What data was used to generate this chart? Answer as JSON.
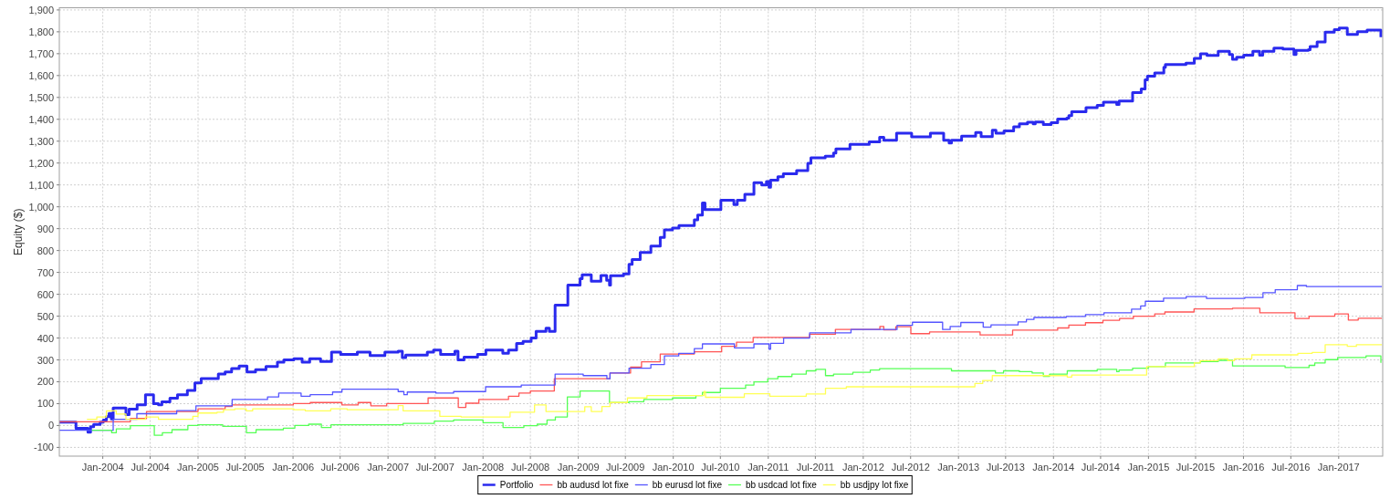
{
  "chart_data": {
    "type": "step",
    "ylabel": "Equity ($)",
    "grid": true,
    "legend": "bottom",
    "xlim": [
      "2003-07-18",
      "2017-06-19"
    ],
    "xticks": [
      {
        "value": "2004-01",
        "label": "Jan-2004"
      },
      {
        "value": "2004-07",
        "label": "Jul-2004"
      },
      {
        "value": "2005-01",
        "label": "Jan-2005"
      },
      {
        "value": "2005-07",
        "label": "Jul-2005"
      },
      {
        "value": "2006-01",
        "label": "Jan-2006"
      },
      {
        "value": "2006-07",
        "label": "Jul-2006"
      },
      {
        "value": "2007-01",
        "label": "Jan-2007"
      },
      {
        "value": "2007-07",
        "label": "Jul-2007"
      },
      {
        "value": "2008-01",
        "label": "Jan-2008"
      },
      {
        "value": "2008-07",
        "label": "Jul-2008"
      },
      {
        "value": "2009-01",
        "label": "Jan-2009"
      },
      {
        "value": "2009-07",
        "label": "Jul-2009"
      },
      {
        "value": "2010-01",
        "label": "Jan-2010"
      },
      {
        "value": "2010-07",
        "label": "Jul-2010"
      },
      {
        "value": "2011-01",
        "label": "Jan-2011"
      },
      {
        "value": "2011-07",
        "label": "Jul-2011"
      },
      {
        "value": "2012-01",
        "label": "Jan-2012"
      },
      {
        "value": "2012-07",
        "label": "Jul-2012"
      },
      {
        "value": "2013-01",
        "label": "Jan-2013"
      },
      {
        "value": "2013-07",
        "label": "Jul-2013"
      },
      {
        "value": "2014-01",
        "label": "Jan-2014"
      },
      {
        "value": "2014-07",
        "label": "Jul-2014"
      },
      {
        "value": "2015-01",
        "label": "Jan-2015"
      },
      {
        "value": "2015-07",
        "label": "Jul-2015"
      },
      {
        "value": "2016-01",
        "label": "Jan-2016"
      },
      {
        "value": "2016-07",
        "label": "Jul-2016"
      },
      {
        "value": "2017-01",
        "label": "Jan-2017"
      }
    ],
    "ylim": [
      -140,
      1910
    ],
    "yticks": [
      -100,
      0,
      100,
      200,
      300,
      400,
      500,
      600,
      700,
      800,
      900,
      {
        "value": 1000,
        "label": "1,000"
      },
      {
        "value": 1100,
        "label": "1,100"
      },
      {
        "value": 1200,
        "label": "1,200"
      },
      {
        "value": 1300,
        "label": "1,300"
      },
      {
        "value": 1400,
        "label": "1,400"
      },
      {
        "value": 1500,
        "label": "1,500"
      },
      {
        "value": 1600,
        "label": "1,600"
      },
      {
        "value": 1700,
        "label": "1,700"
      },
      {
        "value": 1800,
        "label": "1,800"
      },
      {
        "value": 1900,
        "label": "1,900"
      }
    ],
    "series": [
      {
        "name": "Portfolio",
        "color": "#2a2aee",
        "x": [
          "2003-07-18",
          "2003-09-20",
          "2003-11-05",
          "2003-11-15",
          "2003-11-27",
          "2003-12-22",
          "2004-01-03",
          "2004-01-15",
          "2004-01-25",
          "2004-02-03",
          "2004-02-10",
          "2004-03-30",
          "2004-04-11",
          "2004-05-12",
          "2004-06-13",
          "2004-07-14",
          "2004-08-02",
          "2004-08-15",
          "2004-09-15",
          "2004-10-14",
          "2004-11-21",
          "2004-12-20",
          "2005-01-13",
          "2005-03-20",
          "2005-04-15",
          "2005-05-10",
          "2005-06-08",
          "2005-07-08",
          "2005-08-10",
          "2005-09-19",
          "2005-11-02",
          "2005-11-27",
          "2006-01-04",
          "2006-02-05",
          "2006-03-06",
          "2006-04-17",
          "2006-05-29",
          "2006-07-03",
          "2006-09-05",
          "2006-10-24",
          "2006-12-20",
          "2007-02-09",
          "2007-02-25",
          "2007-03-10",
          "2007-06-01",
          "2007-06-25",
          "2007-07-22",
          "2007-09-15",
          "2007-09-27",
          "2007-10-20",
          "2007-12-11",
          "2008-01-12",
          "2008-03-17",
          "2008-04-08",
          "2008-05-09",
          "2008-06-03",
          "2008-07-04",
          "2008-07-23",
          "2008-08-30",
          "2008-09-12",
          "2008-10-04",
          "2008-11-22",
          "2009-01-08",
          "2009-01-16",
          "2009-02-20",
          "2009-03-29",
          "2009-04-20",
          "2009-05-01",
          "2009-05-05",
          "2009-06-24",
          "2009-07-15",
          "2009-07-27",
          "2009-08-27",
          "2009-10-07",
          "2009-11-12",
          "2009-11-28",
          "2009-12-29",
          "2010-01-23",
          "2010-03-23",
          "2010-04-05",
          "2010-04-23",
          "2010-05-03",
          "2010-07-03",
          "2010-08-22",
          "2010-09-04",
          "2010-10-03",
          "2010-11-07",
          "2010-12-07",
          "2010-12-25",
          "2011-01-04",
          "2011-01-10",
          "2011-02-07",
          "2011-02-28",
          "2011-04-20",
          "2011-06-02",
          "2011-06-14",
          "2011-08-08",
          "2011-09-09",
          "2011-09-18",
          "2011-11-11",
          "2012-01-24",
          "2012-03-04",
          "2012-03-20",
          "2012-05-08",
          "2012-07-05",
          "2012-09-15",
          "2012-11-05",
          "2012-11-26",
          "2012-12-05",
          "2013-01-13",
          "2013-03-08",
          "2013-03-29",
          "2013-05-11",
          "2013-05-25",
          "2013-06-25",
          "2013-08-01",
          "2013-08-23",
          "2013-09-23",
          "2013-10-15",
          "2013-10-23",
          "2013-11-23",
          "2013-12-23",
          "2014-01-17",
          "2014-02-21",
          "2014-03-01",
          "2014-03-12",
          "2014-05-06",
          "2014-06-18",
          "2014-07-12",
          "2014-09-01",
          "2014-09-10",
          "2014-11-01",
          "2014-12-04",
          "2014-12-19",
          "2014-12-28",
          "2015-01-25",
          "2015-03-01",
          "2015-03-07",
          "2015-05-25",
          "2015-06-26",
          "2015-07-20",
          "2015-08-14",
          "2015-09-26",
          "2015-11-08",
          "2015-11-20",
          "2015-12-06",
          "2016-01-02",
          "2016-02-06",
          "2016-03-03",
          "2016-03-15",
          "2016-04-27",
          "2016-06-01",
          "2016-07-13",
          "2016-07-21",
          "2016-09-06",
          "2016-09-13",
          "2016-10-10",
          "2016-11-10",
          "2016-12-15",
          "2017-01-03",
          "2017-02-03",
          "2017-03-14",
          "2017-04-20",
          "2017-06-12"
        ],
        "values": [
          15,
          -13,
          -30,
          -5,
          5,
          15,
          25,
          40,
          55,
          30,
          80,
          50,
          75,
          95,
          140,
          100,
          95,
          108,
          125,
          140,
          160,
          195,
          215,
          235,
          245,
          260,
          272,
          245,
          255,
          270,
          290,
          300,
          305,
          290,
          305,
          293,
          335,
          325,
          335,
          320,
          335,
          340,
          310,
          322,
          335,
          345,
          325,
          340,
          300,
          313,
          325,
          345,
          330,
          345,
          375,
          385,
          400,
          430,
          445,
          430,
          550,
          642,
          671,
          689,
          660,
          686,
          664,
          642,
          685,
          693,
          737,
          759,
          791,
          820,
          860,
          894,
          903,
          914,
          940,
          962,
          1017,
          987,
          1030,
          1010,
          1030,
          1057,
          1110,
          1100,
          1115,
          1089,
          1122,
          1137,
          1151,
          1166,
          1199,
          1224,
          1231,
          1246,
          1265,
          1285,
          1297,
          1318,
          1304,
          1336,
          1320,
          1336,
          1304,
          1292,
          1304,
          1323,
          1340,
          1321,
          1350,
          1336,
          1347,
          1366,
          1379,
          1387,
          1379,
          1388,
          1376,
          1384,
          1401,
          1405,
          1417,
          1435,
          1453,
          1464,
          1478,
          1468,
          1484,
          1522,
          1539,
          1580,
          1597,
          1612,
          1638,
          1650,
          1657,
          1679,
          1699,
          1692,
          1711,
          1696,
          1674,
          1684,
          1693,
          1711,
          1693,
          1711,
          1725,
          1721,
          1696,
          1715,
          1718,
          1733,
          1754,
          1798,
          1810,
          1817,
          1788,
          1801,
          1808,
          1776
        ]
      },
      {
        "name": "bb audusd lot fixe",
        "color": "#ff5555",
        "x": [
          "2003-07-18",
          "2004-04-16",
          "2004-06-17",
          "2005-01-01",
          "2005-04-15",
          "2005-05-12",
          "2006-01-02",
          "2006-03-08",
          "2006-07-08",
          "2006-09-08",
          "2006-10-27",
          "2006-12-27",
          "2007-06-04",
          "2007-09-28",
          "2007-10-27",
          "2007-12-16",
          "2008-04-08",
          "2008-05-18",
          "2008-07-01",
          "2008-10-01",
          "2009-05-03",
          "2009-07-21",
          "2009-09-01",
          "2009-11-12",
          "2010-03-23",
          "2010-07-06",
          "2010-09-01",
          "2010-11-04",
          "2011-06-09",
          "2011-09-16",
          "2012-03-05",
          "2012-03-20",
          "2012-05-05",
          "2012-07-02",
          "2012-09-12",
          "2013-03-25",
          "2013-07-28",
          "2014-01-17",
          "2014-03-01",
          "2014-05-04",
          "2014-07-10",
          "2014-09-12",
          "2014-11-04",
          "2015-01-25",
          "2015-03-05",
          "2015-06-25",
          "2015-11-20",
          "2016-03-04",
          "2016-07-17",
          "2016-09-09",
          "2016-12-17",
          "2017-02-07",
          "2017-03-17",
          "2017-06-16"
        ],
        "values": [
          17,
          32,
          64,
          76,
          87,
          94,
          100,
          105,
          94,
          105,
          90,
          100,
          126,
          83,
          102,
          119,
          134,
          148,
          158,
          214,
          240,
          267,
          291,
          327,
          337,
          362,
          381,
          403,
          417,
          439,
          453,
          437,
          452,
          420,
          428,
          414,
          436,
          446,
          459,
          470,
          481,
          489,
          500,
          510,
          519,
          533,
          536,
          515,
          489,
          500,
          510,
          482,
          490,
          490
        ]
      },
      {
        "name": "bb eurusd lot fixe",
        "color": "#5555ff",
        "x": [
          "2003-07-18",
          "2004-02-10",
          "2004-05-11",
          "2004-10-11",
          "2004-12-24",
          "2005-05-12",
          "2005-09-25",
          "2005-11-07",
          "2006-02-01",
          "2006-03-08",
          "2006-06-02",
          "2006-07-08",
          "2007-02-09",
          "2007-03-03",
          "2007-03-16",
          "2007-07-04",
          "2007-09-10",
          "2008-01-11",
          "2008-05-27",
          "2008-10-04",
          "2009-01-20",
          "2009-04-21",
          "2009-05-03",
          "2009-07-15",
          "2009-10-07",
          "2009-11-28",
          "2010-01-22",
          "2010-03-23",
          "2010-04-23",
          "2010-08-24",
          "2010-11-07",
          "2011-01-04",
          "2011-01-10",
          "2011-03-01",
          "2011-06-09",
          "2011-11-15",
          "2012-05-10",
          "2012-07-08",
          "2012-11-01",
          "2012-11-30",
          "2013-01-10",
          "2013-04-06",
          "2013-05-06",
          "2013-08-18",
          "2013-09-19",
          "2013-10-18",
          "2014-02-19",
          "2014-05-04",
          "2014-07-14",
          "2014-10-28",
          "2014-12-02",
          "2014-12-20",
          "2015-02-28",
          "2015-05-26",
          "2015-08-12",
          "2016-01-06",
          "2016-03-16",
          "2016-05-02",
          "2016-07-26",
          "2016-08-30",
          "2017-06-16"
        ],
        "values": [
          -22,
          28,
          54,
          68,
          90,
          119,
          131,
          148,
          134,
          141,
          153,
          166,
          155,
          141,
          153,
          148,
          155,
          177,
          185,
          235,
          228,
          214,
          240,
          262,
          279,
          318,
          330,
          352,
          373,
          355,
          373,
          349,
          376,
          400,
          424,
          439,
          458,
          472,
          439,
          453,
          471,
          450,
          460,
          474,
          485,
          494,
          499,
          507,
          515,
          532,
          547,
          568,
          582,
          589,
          581,
          585,
          607,
          621,
          640,
          635,
          635
        ]
      },
      {
        "name": "bb usdcad lot fixe",
        "color": "#55ff55",
        "x": [
          "2003-11-20",
          "2004-02-04",
          "2004-02-22",
          "2004-04-16",
          "2004-07-17",
          "2004-08-17",
          "2004-09-23",
          "2004-11-23",
          "2004-12-31",
          "2005-04-06",
          "2005-07-06",
          "2005-08-12",
          "2005-11-25",
          "2006-01-08",
          "2006-03-02",
          "2006-04-20",
          "2006-05-27",
          "2007-02-28",
          "2007-06-28",
          "2007-09-10",
          "2008-01-01",
          "2008-03-18",
          "2008-06-06",
          "2008-07-27",
          "2008-09-03",
          "2008-10-05",
          "2008-11-20",
          "2009-01-08",
          "2009-05-01",
          "2009-07-15",
          "2009-09-10",
          "2009-12-29",
          "2010-03-29",
          "2010-04-23",
          "2010-07-01",
          "2010-10-06",
          "2010-11-07",
          "2010-12-30",
          "2011-02-07",
          "2011-04-02",
          "2011-05-27",
          "2011-07-03",
          "2011-08-09",
          "2011-09-09",
          "2011-11-22",
          "2012-01-28",
          "2012-03-04",
          "2012-12-05",
          "2013-05-23",
          "2013-06-23",
          "2013-08-23",
          "2013-10-11",
          "2013-11-23",
          "2013-12-17",
          "2014-02-23",
          "2014-06-18",
          "2014-09-01",
          "2014-09-10",
          "2014-11-01",
          "2015-01-01",
          "2015-03-07",
          "2015-07-19",
          "2015-09-26",
          "2015-11-20",
          "2016-06-09",
          "2016-09-09",
          "2016-10-01",
          "2016-11-10",
          "2016-12-28",
          "2017-04-16",
          "2017-06-12"
        ],
        "values": [
          -22,
          -33,
          -15,
          -1,
          -45,
          -33,
          -19,
          0,
          3,
          -4,
          -33,
          -19,
          -12,
          0,
          6,
          -9,
          3,
          10,
          20,
          25,
          13,
          -9,
          -1,
          6,
          25,
          39,
          131,
          158,
          105,
          109,
          119,
          126,
          137,
          151,
          170,
          185,
          199,
          214,
          224,
          235,
          250,
          257,
          228,
          235,
          243,
          254,
          260,
          250,
          240,
          250,
          246,
          240,
          225,
          235,
          250,
          257,
          246,
          254,
          262,
          269,
          286,
          292,
          298,
          272,
          265,
          275,
          286,
          301,
          311,
          318,
          286
        ]
      },
      {
        "name": "bb usdjpy lot fixe",
        "color": "#ffff55",
        "x": [
          "2003-11-01",
          "2003-12-09",
          "2004-01-15",
          "2004-02-22",
          "2004-03-30",
          "2004-06-13",
          "2004-08-02",
          "2004-12-12",
          "2005-01-01",
          "2005-03-15",
          "2005-04-09",
          "2005-05-22",
          "2005-07-05",
          "2005-07-30",
          "2006-01-04",
          "2006-02-17",
          "2006-05-26",
          "2006-07-28",
          "2007-02-09",
          "2007-02-28",
          "2007-07-19",
          "2007-10-09",
          "2008-04-14",
          "2008-07-17",
          "2008-08-30",
          "2009-01-26",
          "2009-02-20",
          "2009-04-02",
          "2009-05-03",
          "2009-07-09",
          "2009-09-22",
          "2010-04-29",
          "2010-05-05",
          "2010-10-01",
          "2011-01-07",
          "2011-05-27",
          "2011-08-09",
          "2011-10-28",
          "2013-03-05",
          "2013-04-04",
          "2013-05-11",
          "2014-02-23",
          "2014-03-12",
          "2014-12-25",
          "2015-06-26",
          "2015-07-19",
          "2015-09-26",
          "2015-11-02",
          "2015-11-27",
          "2016-02-02",
          "2016-07-28",
          "2016-09-21",
          "2016-11-10",
          "2017-02-03",
          "2017-03-10",
          "2017-06-16"
        ],
        "values": [
          28,
          39,
          67,
          52,
          28,
          39,
          28,
          42,
          57,
          61,
          72,
          76,
          67,
          76,
          72,
          67,
          76,
          72,
          91,
          67,
          42,
          39,
          61,
          94,
          64,
          86,
          64,
          87,
          105,
          126,
          137,
          156,
          129,
          145,
          134,
          144,
          170,
          177,
          192,
          206,
          228,
          221,
          231,
          269,
          286,
          296,
          305,
          296,
          305,
          323,
          330,
          334,
          369,
          362,
          369,
          369
        ]
      }
    ]
  }
}
